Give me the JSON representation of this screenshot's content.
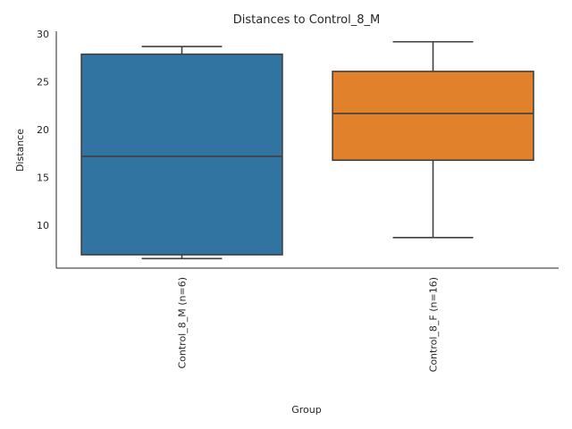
{
  "chart_data": {
    "type": "box",
    "title": "Distances to Control_8_M",
    "xlabel": "Group",
    "ylabel": "Distance",
    "ylim": [
      5.5,
      30.3
    ],
    "yticks": [
      10,
      15,
      20,
      25,
      30
    ],
    "grid": false,
    "categories": [
      "Control_8_M (n=6)",
      "Control_8_F (n=16)"
    ],
    "boxes": [
      {
        "category": "Control_8_M (n=6)",
        "whisker_low": 6.5,
        "q1": 6.9,
        "median": 17.2,
        "q3": 27.9,
        "whisker_high": 28.7,
        "color": "#3274a1"
      },
      {
        "category": "Control_8_F (n=16)",
        "whisker_low": 8.7,
        "q1": 16.8,
        "median": 21.7,
        "q3": 26.1,
        "whisker_high": 29.2,
        "color": "#e1812c"
      }
    ],
    "line_color": "#3f3f3f"
  }
}
